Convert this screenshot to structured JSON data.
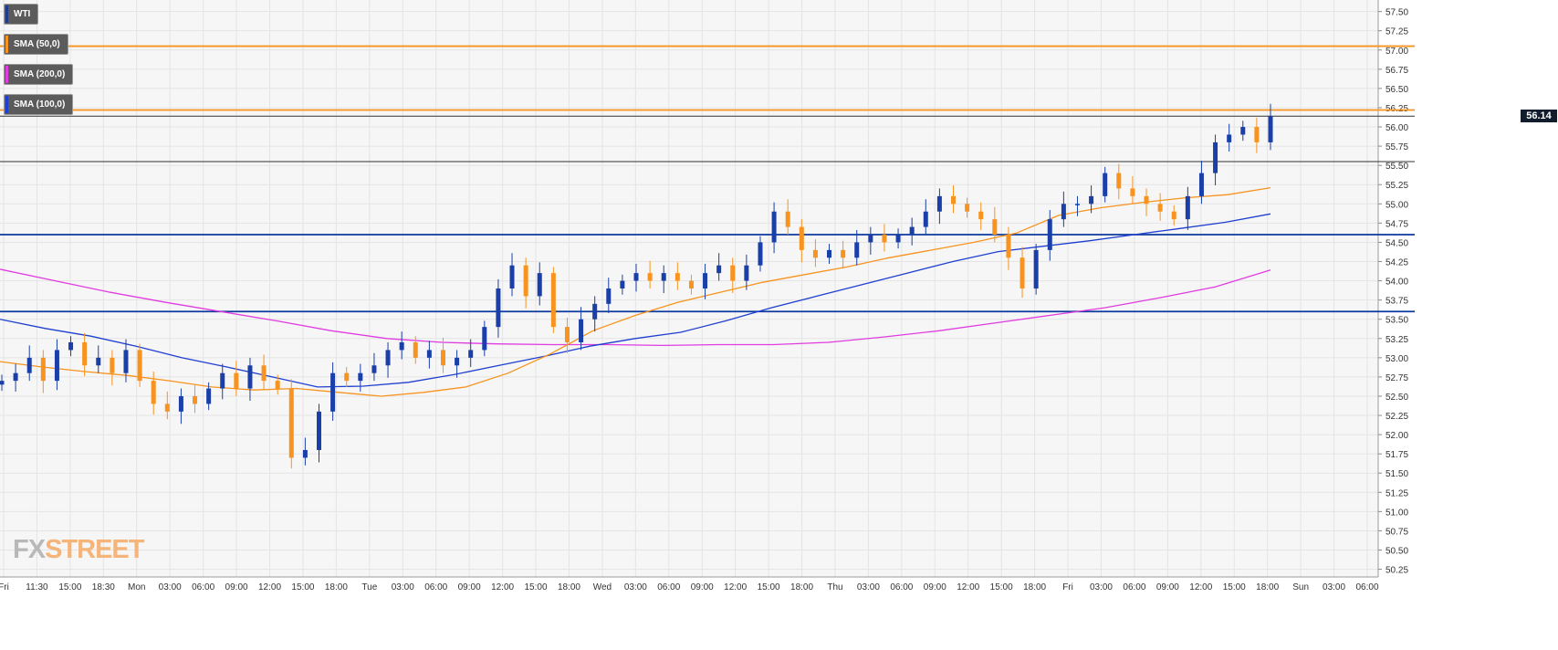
{
  "chart_data": {
    "type": "candlestick",
    "title": "",
    "instrument": "WTI",
    "legend": [
      {
        "name": "WTI",
        "color": "#1e3d8f"
      },
      {
        "name": "SMA (50,0)",
        "color": "#f7931e"
      },
      {
        "name": "SMA (200,0)",
        "color": "#e03ce0"
      },
      {
        "name": "SMA (100,0)",
        "color": "#1f3fd0"
      }
    ],
    "y_axis": {
      "side": "right",
      "range": [
        50.15,
        57.65
      ],
      "ticks": [
        "50.25",
        "50.50",
        "50.75",
        "51.00",
        "51.25",
        "51.50",
        "51.75",
        "52.00",
        "52.25",
        "52.50",
        "52.75",
        "53.00",
        "53.25",
        "53.50",
        "53.75",
        "54.00",
        "54.25",
        "54.50",
        "54.75",
        "55.00",
        "55.25",
        "55.50",
        "55.75",
        "56.00",
        "56.25",
        "56.50",
        "56.75",
        "57.00",
        "57.25",
        "57.50"
      ]
    },
    "x_axis": {
      "ticks": [
        "Fri",
        "11:30",
        "15:00",
        "18:30",
        "Mon",
        "03:00",
        "06:00",
        "09:00",
        "12:00",
        "15:00",
        "18:00",
        "Tue",
        "03:00",
        "06:00",
        "09:00",
        "12:00",
        "15:00",
        "18:00",
        "Wed",
        "03:00",
        "06:00",
        "09:00",
        "12:00",
        "15:00",
        "18:00",
        "Thu",
        "03:00",
        "06:00",
        "09:00",
        "12:00",
        "15:00",
        "18:00",
        "Fri",
        "03:00",
        "06:00",
        "09:00",
        "12:00",
        "15:00",
        "18:00",
        "Sun",
        "03:00",
        "06:00"
      ]
    },
    "last_price": "56.14",
    "horizontal_levels": [
      {
        "value": 57.05,
        "color": "#f7931e"
      },
      {
        "value": 56.22,
        "color": "#f7931e"
      },
      {
        "value": 56.14,
        "color": "#333333"
      },
      {
        "value": 55.55,
        "color": "#333333"
      },
      {
        "value": 54.6,
        "color": "#0d3a9e"
      },
      {
        "value": 53.6,
        "color": "#0d3a9e"
      }
    ],
    "grid": true,
    "closes_approx": [
      52.7,
      52.8,
      53.0,
      52.7,
      53.1,
      53.2,
      52.9,
      53.0,
      52.8,
      53.1,
      52.7,
      52.4,
      52.3,
      52.5,
      52.4,
      52.6,
      52.8,
      52.6,
      52.9,
      52.7,
      52.6,
      51.7,
      51.8,
      52.3,
      52.8,
      52.7,
      52.8,
      52.9,
      53.1,
      53.2,
      53.0,
      53.1,
      52.9,
      53.0,
      53.1,
      53.4,
      53.9,
      54.2,
      53.8,
      54.1,
      53.4,
      53.2,
      53.5,
      53.7,
      53.9,
      54.0,
      54.1,
      54.0,
      54.1,
      54.0,
      53.9,
      54.1,
      54.2,
      54.0,
      54.2,
      54.5,
      54.9,
      54.7,
      54.4,
      54.3,
      54.4,
      54.3,
      54.5,
      54.6,
      54.5,
      54.6,
      54.7,
      54.9,
      55.1,
      55.0,
      54.9,
      54.8,
      54.6,
      54.3,
      53.9,
      54.4,
      54.8,
      55.0,
      55.0,
      55.1,
      55.4,
      55.2,
      55.1,
      55.0,
      54.9,
      54.8,
      55.1,
      55.4,
      55.8,
      55.9,
      56.0,
      55.8,
      56.14
    ],
    "sma_50_approx": [
      52.95,
      52.88,
      52.82,
      52.77,
      52.7,
      52.62,
      52.58,
      52.6,
      52.55,
      52.5,
      52.55,
      52.62,
      52.8,
      53.05,
      53.35,
      53.55,
      53.72,
      53.85,
      53.98,
      54.08,
      54.18,
      54.3,
      54.4,
      54.5,
      54.62,
      54.85,
      54.95,
      55.02,
      55.08,
      55.12,
      55.21
    ],
    "sma_100_approx": [
      53.5,
      53.38,
      53.28,
      53.15,
      53.0,
      52.88,
      52.75,
      52.62,
      52.63,
      52.68,
      52.78,
      52.9,
      53.02,
      53.15,
      53.25,
      53.33,
      53.48,
      53.65,
      53.8,
      53.95,
      54.1,
      54.25,
      54.38,
      54.45,
      54.52,
      54.6,
      54.68,
      54.76,
      54.87
    ],
    "sma_200_approx": [
      54.15,
      54.0,
      53.85,
      53.72,
      53.6,
      53.48,
      53.35,
      53.25,
      53.2,
      53.18,
      53.17,
      53.17,
      53.16,
      53.17,
      53.17,
      53.2,
      53.27,
      53.35,
      53.45,
      53.55,
      53.65,
      53.78,
      53.92,
      54.14
    ]
  },
  "branding": {
    "part1": "FX",
    "part2": "STREET"
  }
}
